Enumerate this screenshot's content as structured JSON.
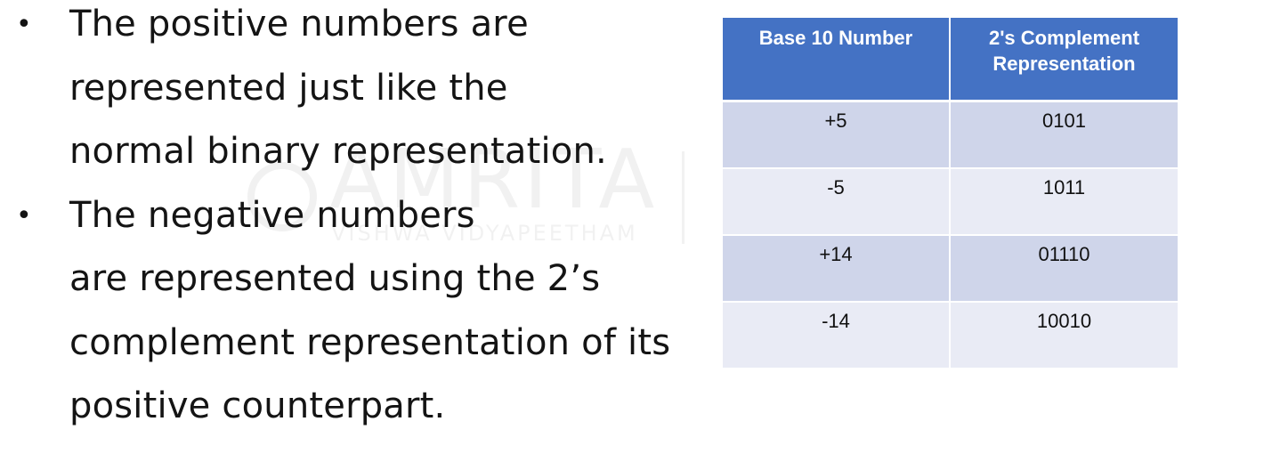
{
  "bullets": [
    {
      "lines": [
        "The positive numbers are",
        "represented just like the",
        "normal binary representation."
      ]
    },
    {
      "lines": [
        "The negative numbers",
        "are represented using the 2’s",
        "complement representation of its",
        "positive counterpart."
      ]
    }
  ],
  "bullet_symbol": "•",
  "table": {
    "headers": [
      "Base 10 Number",
      "2's Complement Representation"
    ],
    "rows": [
      [
        "+5",
        "0101"
      ],
      [
        "-5",
        "1011"
      ],
      [
        "+14",
        "01110"
      ],
      [
        "-14",
        "10010"
      ]
    ]
  },
  "watermark": {
    "text": "AMRITA",
    "subtext": "VISHWA VIDYAPEETHAM"
  },
  "colors": {
    "header_bg": "#4472c4",
    "row_odd": "#cfd5ea",
    "row_even": "#e9ebf5"
  }
}
